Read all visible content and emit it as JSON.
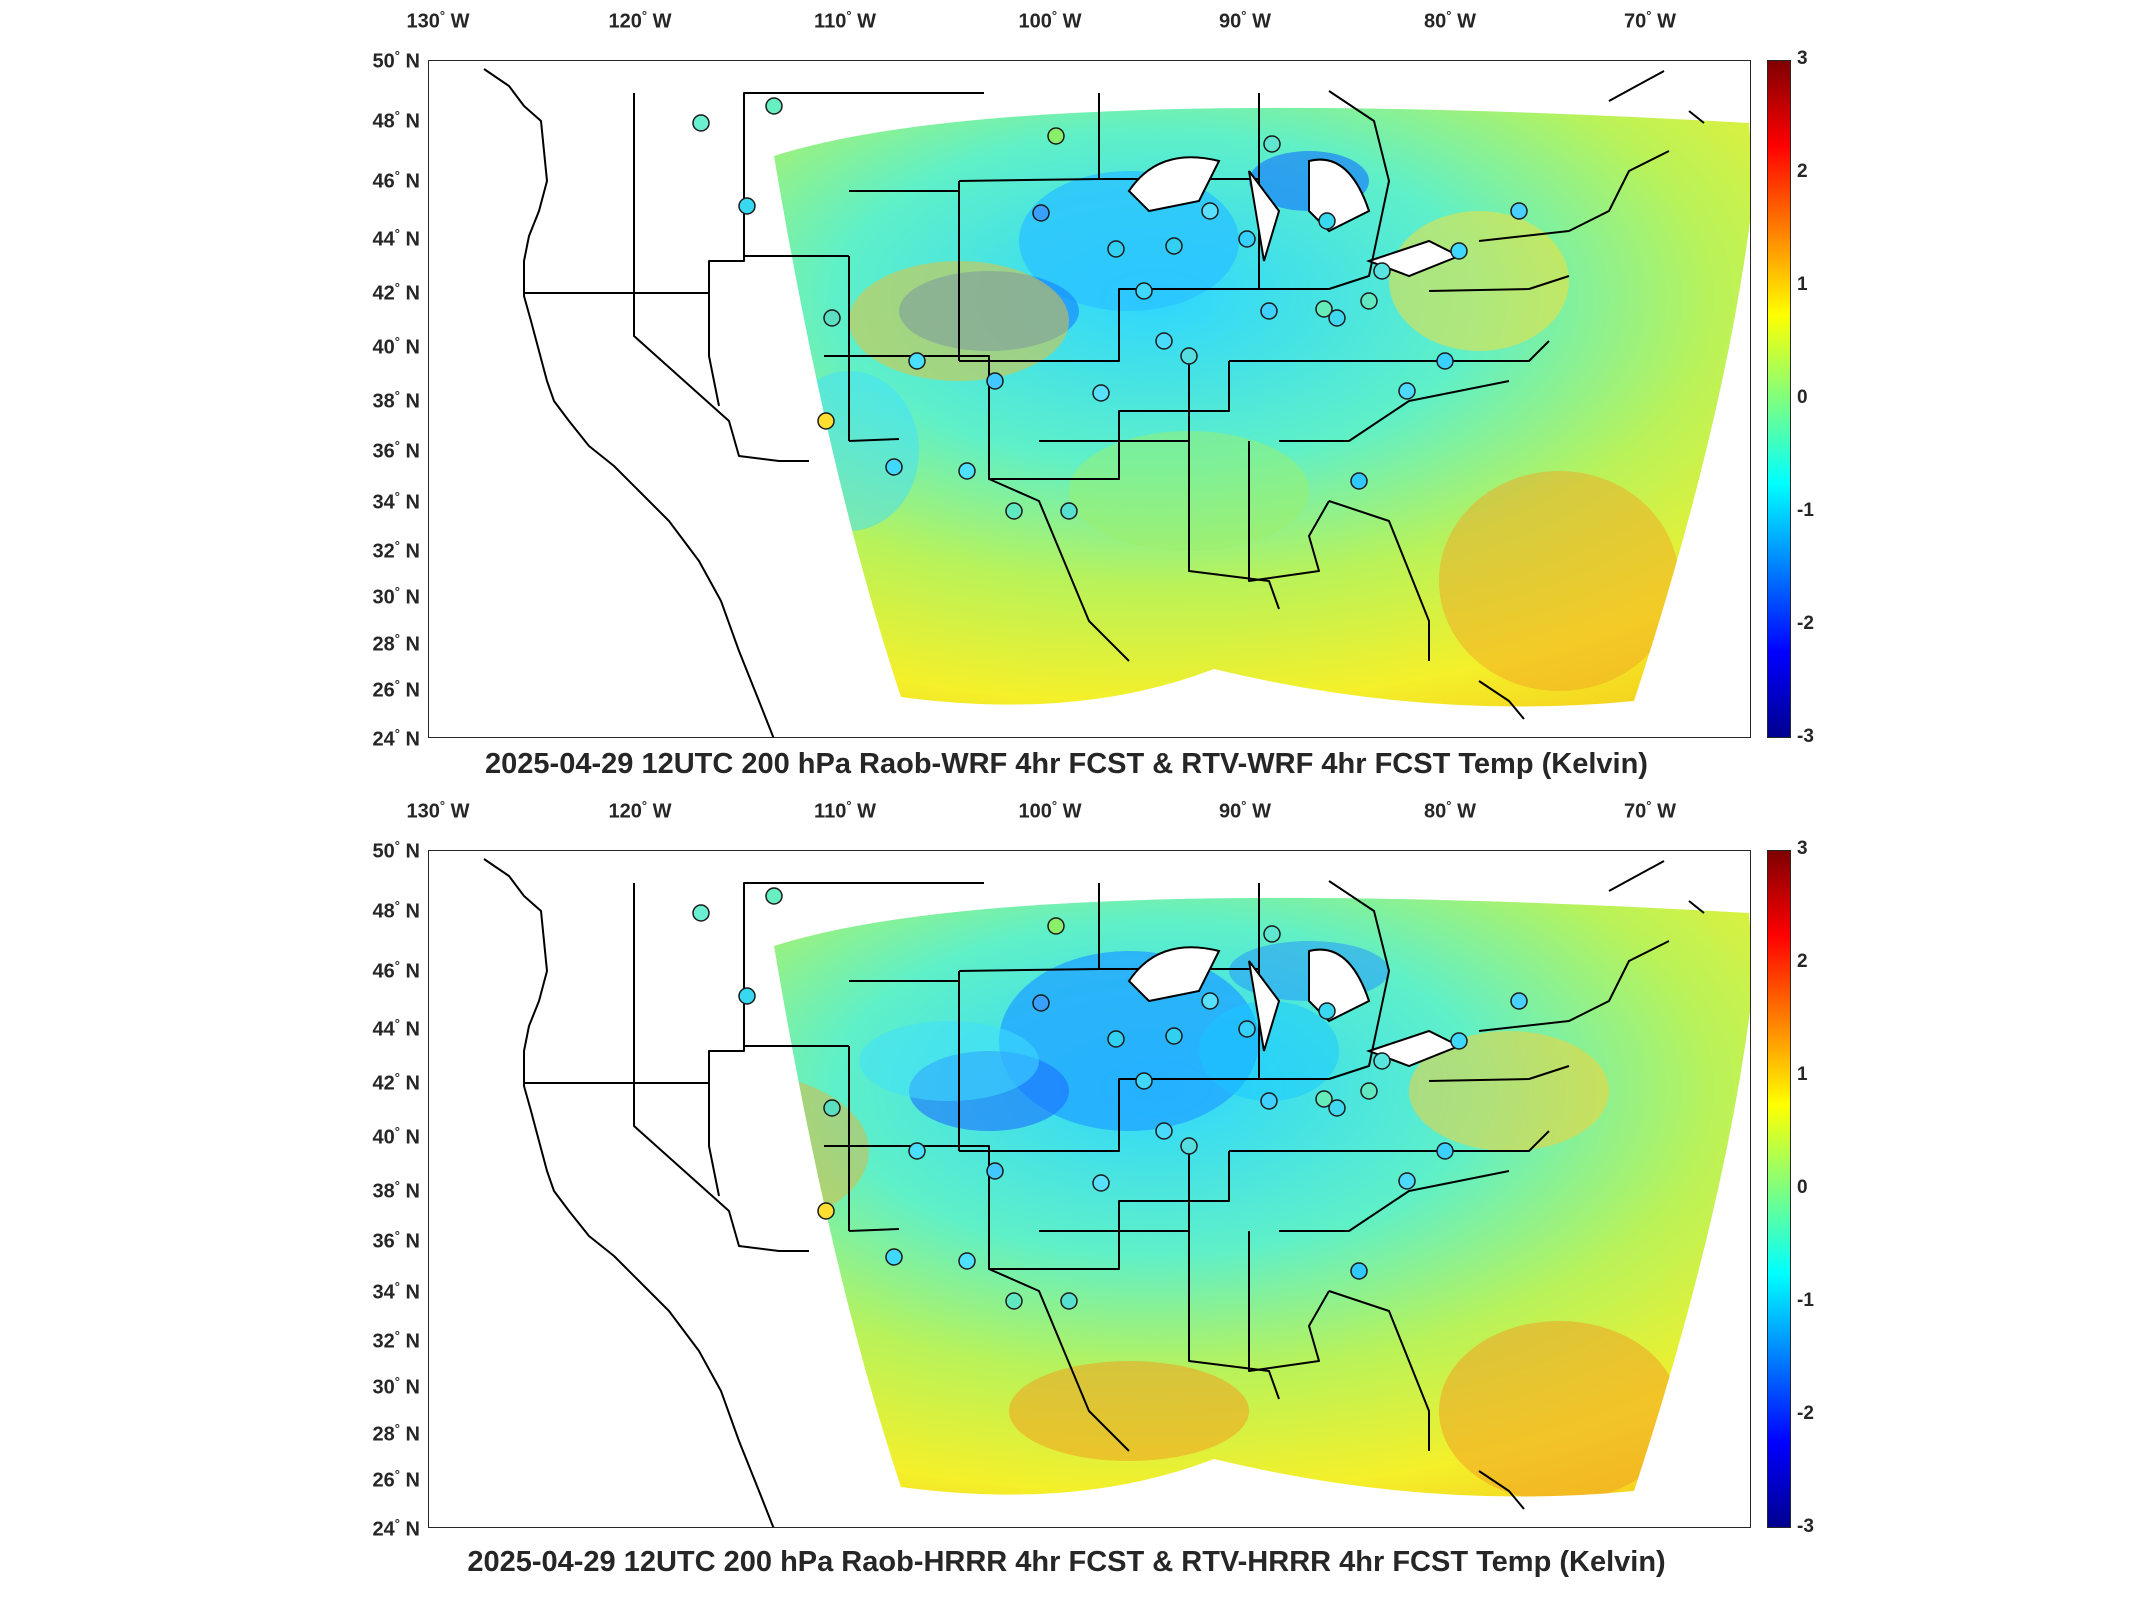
{
  "lon_ticks": [
    "130",
    "120",
    "110",
    "100",
    "90",
    "80",
    "70"
  ],
  "lon_hemisphere": "W",
  "lat_ticks": [
    "50",
    "48",
    "46",
    "44",
    "42",
    "40",
    "38",
    "36",
    "34",
    "32",
    "30",
    "28",
    "26",
    "24"
  ],
  "lat_hemisphere": "N",
  "colorbar": {
    "ticks": [
      "3",
      "2",
      "1",
      "0",
      "-1",
      "-2",
      "-3"
    ],
    "range": [
      -3,
      3
    ],
    "colormap": "jet"
  },
  "panels": [
    {
      "title": "2025-04-29 12UTC 200 hPa Raob-WRF 4hr FCST & RTV-WRF 4hr FCST Temp (Kelvin)"
    },
    {
      "title": "2025-04-29 12UTC 200 hPa Raob-HRRR 4hr FCST & RTV-HRRR 4hr FCST Temp (Kelvin)"
    }
  ]
}
